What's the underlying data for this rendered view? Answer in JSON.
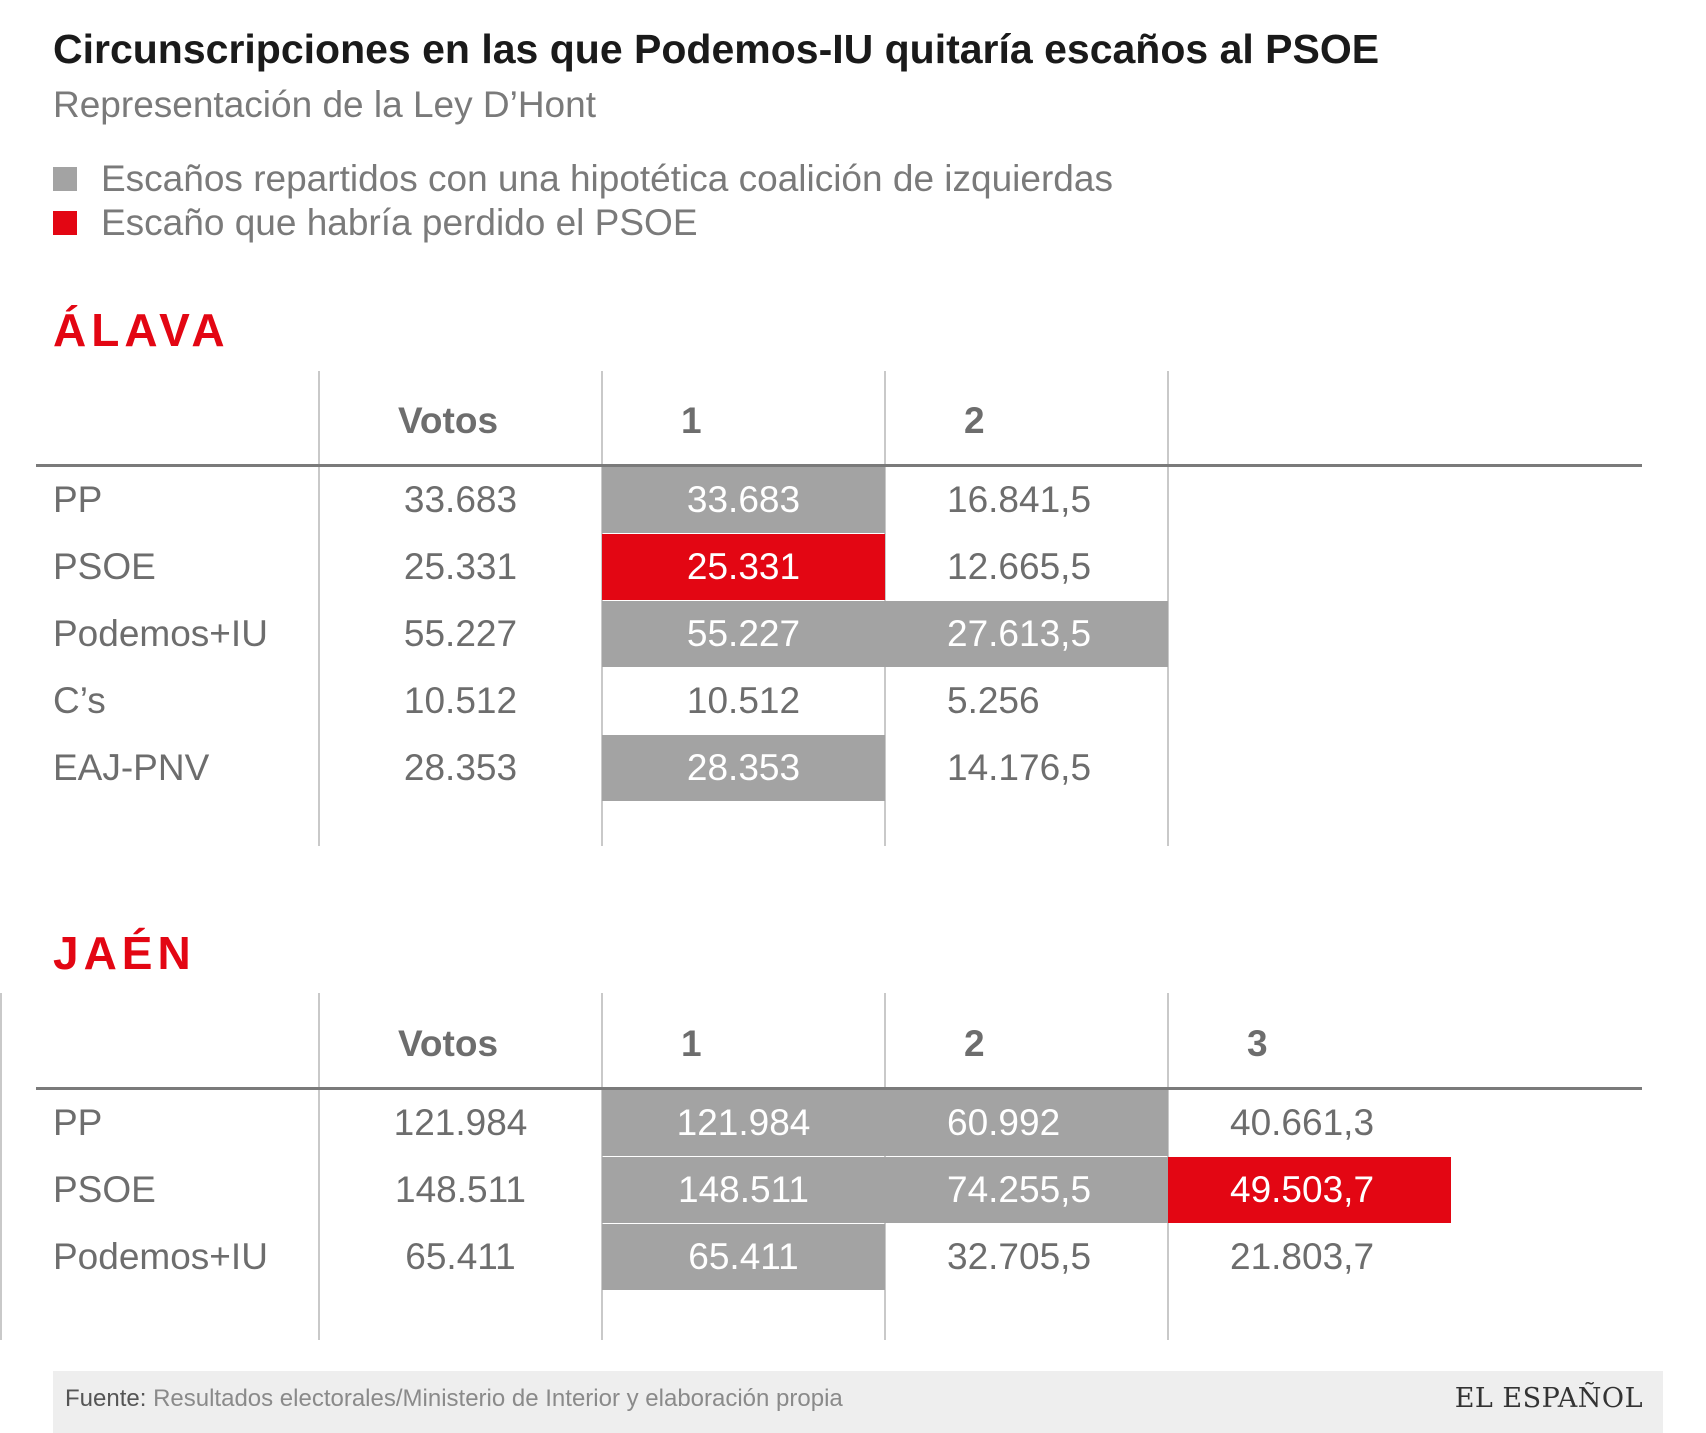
{
  "title": "Circunscripciones en las que Podemos-IU quitaría escaños al PSOE",
  "subtitle": "Representación de la Ley D’Hont",
  "legend": [
    {
      "label": "Escaños repartidos con una hipotética coalición de izquierdas",
      "color": "#a3a3a3"
    },
    {
      "label": "Escaño que habría perdido el PSOE",
      "color": "#e30613"
    }
  ],
  "colors": {
    "accent": "#e30613",
    "seat": "#a3a3a3",
    "text": "#6d6d6d"
  },
  "chart_data": [
    {
      "type": "table",
      "title": "ÁLAVA",
      "headers": [
        "",
        "Votos",
        "1",
        "2"
      ],
      "rows": [
        {
          "party": "PP",
          "votos": "33.683",
          "cells": [
            {
              "v": "33.683",
              "fill": "seat"
            },
            {
              "v": "16.841,5",
              "fill": ""
            }
          ]
        },
        {
          "party": "PSOE",
          "votos": "25.331",
          "cells": [
            {
              "v": "25.331",
              "fill": "lost"
            },
            {
              "v": "12.665,5",
              "fill": ""
            }
          ]
        },
        {
          "party": "Podemos+IU",
          "votos": "55.227",
          "cells": [
            {
              "v": "55.227",
              "fill": "seat"
            },
            {
              "v": "27.613,5",
              "fill": "seat"
            }
          ]
        },
        {
          "party": "C’s",
          "votos": "10.512",
          "cells": [
            {
              "v": "10.512",
              "fill": ""
            },
            {
              "v": "5.256",
              "fill": ""
            }
          ]
        },
        {
          "party": "EAJ-PNV",
          "votos": "28.353",
          "cells": [
            {
              "v": "28.353",
              "fill": "seat"
            },
            {
              "v": "14.176,5",
              "fill": ""
            }
          ]
        }
      ]
    },
    {
      "type": "table",
      "title": "JAÉN",
      "headers": [
        "",
        "Votos",
        "1",
        "2",
        "3"
      ],
      "rows": [
        {
          "party": "PP",
          "votos": "121.984",
          "cells": [
            {
              "v": "121.984",
              "fill": "seat"
            },
            {
              "v": "60.992",
              "fill": "seat"
            },
            {
              "v": "40.661,3",
              "fill": ""
            }
          ]
        },
        {
          "party": "PSOE",
          "votos": "148.511",
          "cells": [
            {
              "v": "148.511",
              "fill": "seat"
            },
            {
              "v": "74.255,5",
              "fill": "seat"
            },
            {
              "v": "49.503,7",
              "fill": "lost"
            }
          ]
        },
        {
          "party": "Podemos+IU",
          "votos": "65.411",
          "cells": [
            {
              "v": "65.411",
              "fill": "seat"
            },
            {
              "v": "32.705,5",
              "fill": ""
            },
            {
              "v": "21.803,7",
              "fill": ""
            }
          ]
        }
      ]
    }
  ],
  "footer": {
    "label": "Fuente:",
    "source": "Resultados electorales/Ministerio de Interior y elaboración propia",
    "brand": "EL ESPAÑOL"
  }
}
